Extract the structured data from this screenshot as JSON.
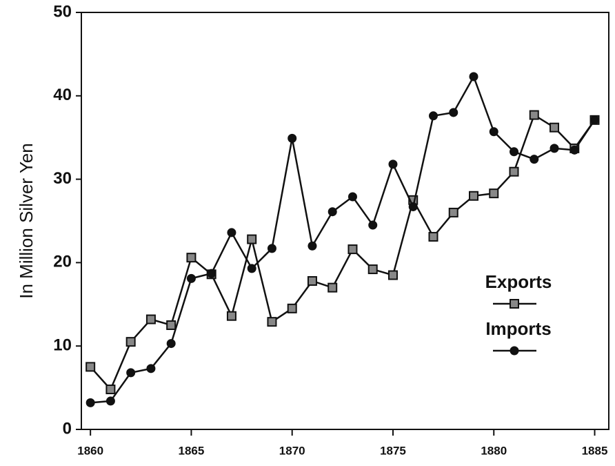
{
  "chart_data": {
    "type": "line",
    "y_label": "In Million Silver Yen",
    "x": [
      1860,
      1861,
      1862,
      1863,
      1864,
      1865,
      1866,
      1867,
      1868,
      1869,
      1870,
      1871,
      1872,
      1873,
      1874,
      1875,
      1876,
      1877,
      1878,
      1879,
      1880,
      1881,
      1882,
      1883,
      1884,
      1885
    ],
    "series": [
      {
        "name": "Exports",
        "color": "#111111",
        "marker": "square",
        "values": [
          7.5,
          4.8,
          10.5,
          13.2,
          12.5,
          20.6,
          18.6,
          13.6,
          22.8,
          12.9,
          14.5,
          17.8,
          17.0,
          21.6,
          19.2,
          18.5,
          27.5,
          23.1,
          26.0,
          28.0,
          28.3,
          30.9,
          37.7,
          36.2,
          33.7,
          37.1
        ]
      },
      {
        "name": "Imports",
        "color": "#111111",
        "marker": "circle",
        "values": [
          3.2,
          3.4,
          6.8,
          7.3,
          10.3,
          18.1,
          18.7,
          23.6,
          19.3,
          21.7,
          34.9,
          22.0,
          26.1,
          27.9,
          24.5,
          31.8,
          26.7,
          37.6,
          38.0,
          42.3,
          35.7,
          33.3,
          32.4,
          33.7,
          33.5,
          37.1
        ]
      }
    ],
    "xlim": [
      1859.55,
      1885.7
    ],
    "xticks": [
      1860,
      1865,
      1870,
      1875,
      1880,
      1885
    ],
    "ylim": [
      0,
      50
    ],
    "yticks": [
      0,
      10,
      20,
      30,
      40,
      50
    ],
    "grid": false,
    "legend": "lower right"
  }
}
